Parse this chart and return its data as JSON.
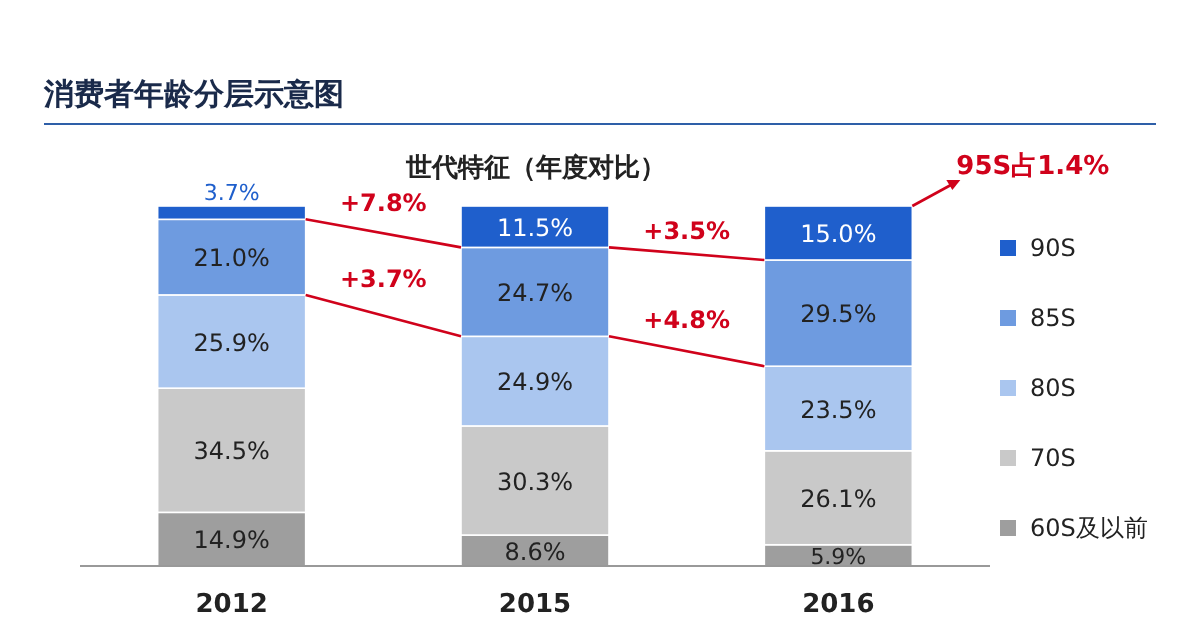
{
  "chart_data": {
    "type": "bar",
    "stacked": true,
    "legend": "right",
    "subtitle": "消费者年龄分层示意图",
    "title": "世代特征（年度对比）",
    "categories": [
      "2012",
      "2015",
      "2016"
    ],
    "series": [
      {
        "name": "60S及以前",
        "color": "#9e9e9e",
        "values": [
          14.9,
          8.6,
          5.9
        ],
        "value_labels": [
          "14.9%",
          "8.6%",
          "5.9%"
        ]
      },
      {
        "name": "70S",
        "color": "#c9c9c9",
        "values": [
          34.5,
          30.3,
          26.1
        ],
        "value_labels": [
          "34.5%",
          "30.3%",
          "26.1%"
        ]
      },
      {
        "name": "80S",
        "color": "#aac6ef",
        "values": [
          25.9,
          24.9,
          23.5
        ],
        "value_labels": [
          "25.9%",
          "24.9%",
          "23.5%"
        ]
      },
      {
        "name": "85S",
        "color": "#6e9be0",
        "values": [
          21.0,
          24.7,
          29.5
        ],
        "value_labels": [
          "21.0%",
          "24.7%",
          "29.5%"
        ]
      },
      {
        "name": "90S",
        "color": "#1f5fcc",
        "values": [
          3.7,
          11.5,
          15.0
        ],
        "value_labels": [
          "3.7%",
          "11.5%",
          "15.0%"
        ]
      }
    ],
    "annotations": [
      "+7.8%",
      "+3.7%",
      "+3.5%",
      "+4.8%",
      "95S占1.4%"
    ]
  }
}
